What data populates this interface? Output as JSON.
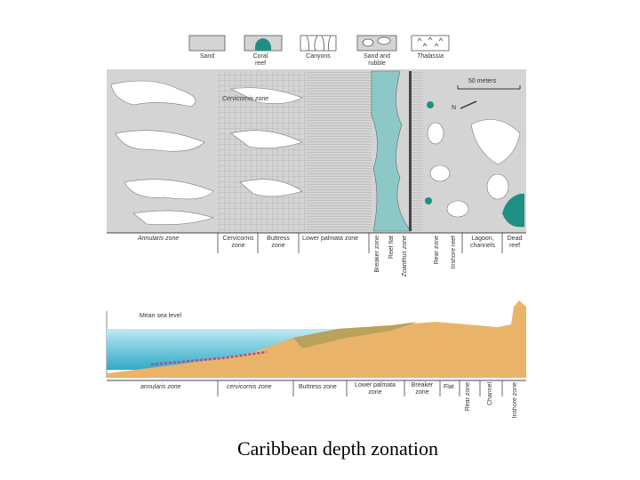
{
  "legend": [
    "Sand",
    "Coral reef",
    "Canyons",
    "Sand and rubble",
    "Thalassia"
  ],
  "map": {
    "cervicornis_label": "Cervicornis zone",
    "scale": "50 meters",
    "north": "N",
    "zones": [
      "Annularis zone",
      "Cervicornis zone",
      "Buttress zone",
      "Lower palmata zone",
      "Breaker zone",
      "Reef flat",
      "Zoanthus zone",
      "Rear zone",
      "Inshore reef",
      "Lagoon, channels",
      "Dead reef"
    ]
  },
  "profile": {
    "sea_level": "Mean sea level",
    "zones": [
      "annularis zone",
      "cervicornis zone",
      "Buttress zone",
      "Lower palmata zone",
      "Breaker zone",
      "Flat",
      "Rear zone",
      "Channel",
      "Inshore zone"
    ]
  },
  "caption": "Caribbean depth zonation"
}
